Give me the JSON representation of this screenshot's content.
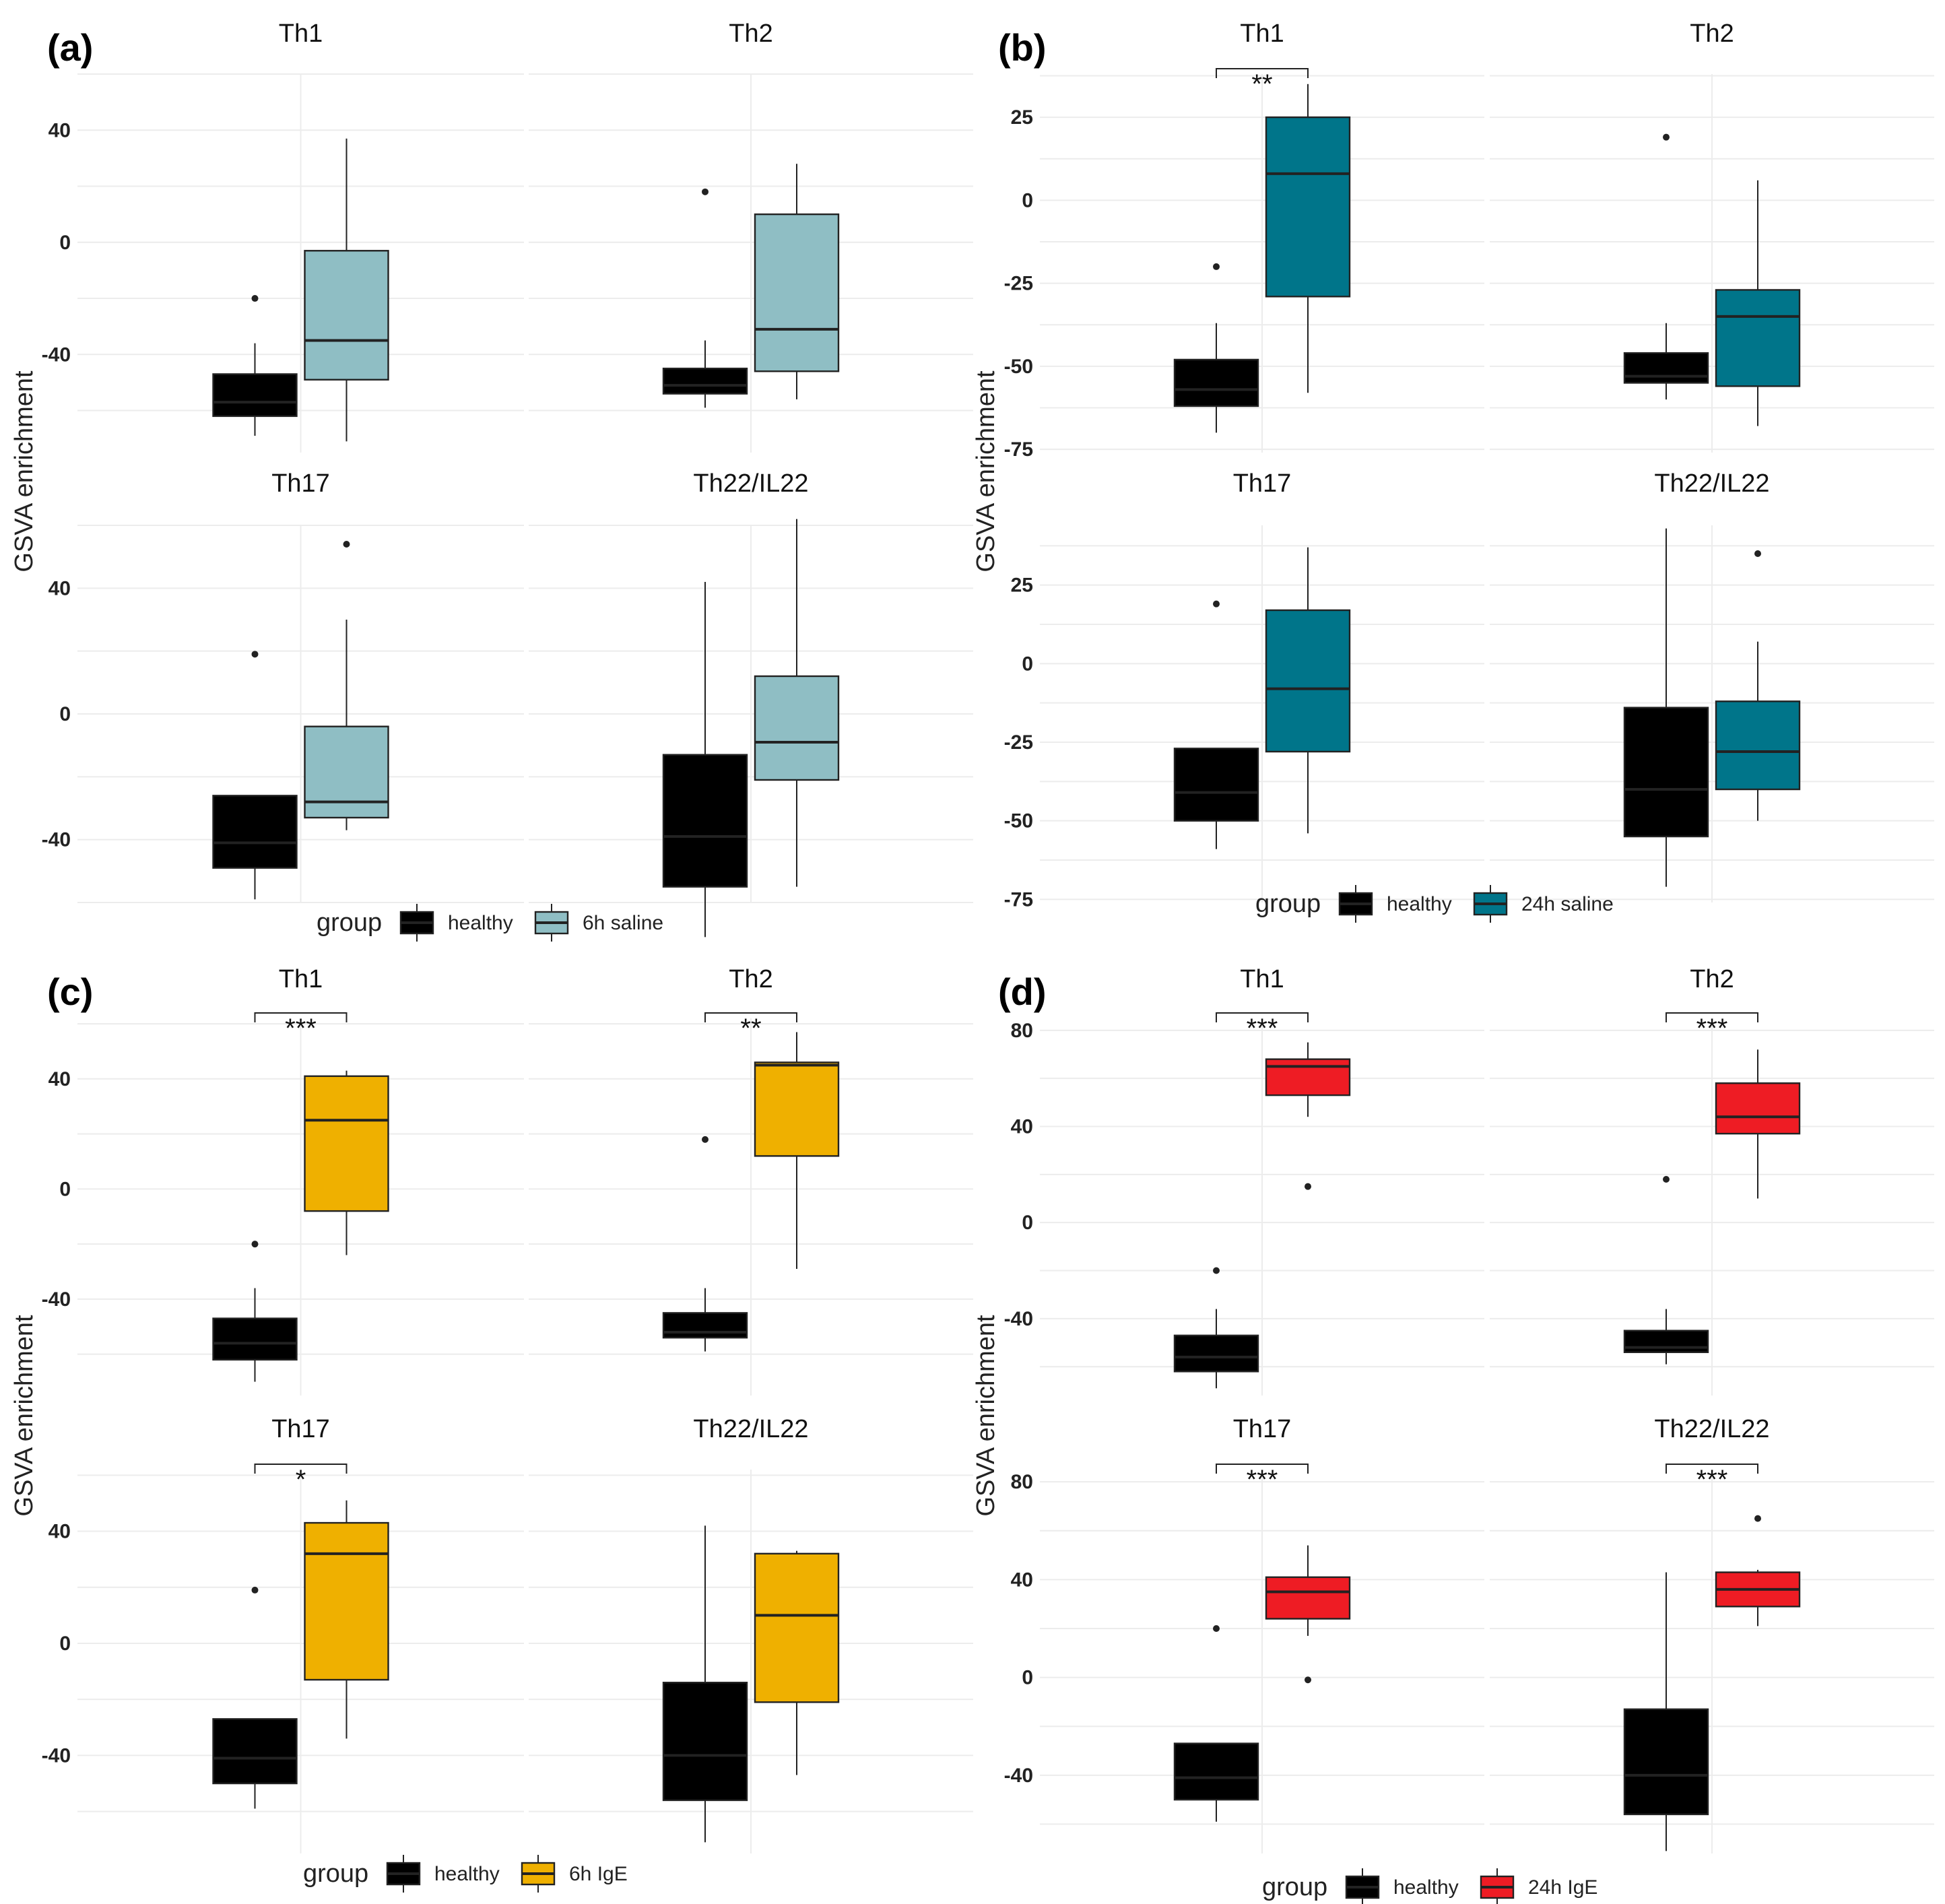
{
  "chart_data": [
    {
      "id": "a",
      "type": "boxplot",
      "panel_label": "(a)",
      "ylabel": "GSVA enrichment",
      "group_title": "group",
      "groups": [
        "healthy",
        "6h saline"
      ],
      "colors": [
        "#000000",
        "#8fbec4"
      ],
      "rows": [
        {
          "yticks": [
            40,
            0,
            -40
          ],
          "ylim": [
            -75,
            60
          ],
          "facets": [
            {
              "title": "Th1",
              "sig": "",
              "boxes": [
                {
                  "min": -69,
                  "q1": -62,
                  "median": -57,
                  "q3": -47,
                  "max": -36,
                  "outliers": [
                    -20
                  ]
                },
                {
                  "min": -71,
                  "q1": -49,
                  "median": -35,
                  "q3": -3,
                  "max": 37,
                  "outliers": []
                }
              ]
            },
            {
              "title": "Th2",
              "sig": "",
              "boxes": [
                {
                  "min": -59,
                  "q1": -54,
                  "median": -51,
                  "q3": -45,
                  "max": -35,
                  "outliers": [
                    18
                  ]
                },
                {
                  "min": -56,
                  "q1": -46,
                  "median": -31,
                  "q3": 10,
                  "max": 28,
                  "outliers": []
                }
              ]
            }
          ]
        },
        {
          "yticks": [
            40,
            0,
            -40
          ],
          "ylim": [
            -60,
            60
          ],
          "facets": [
            {
              "title": "Th17",
              "sig": "",
              "boxes": [
                {
                  "min": -59,
                  "q1": -49,
                  "median": -41,
                  "q3": -26,
                  "max": -26,
                  "outliers": [
                    19
                  ]
                },
                {
                  "min": -37,
                  "q1": -33,
                  "median": -28,
                  "q3": -4,
                  "max": 30,
                  "outliers": [
                    54
                  ]
                }
              ]
            },
            {
              "title": "Th22/IL22",
              "sig": "",
              "boxes": [
                {
                  "min": -71,
                  "q1": -55,
                  "median": -39,
                  "q3": -13,
                  "max": 42,
                  "outliers": []
                },
                {
                  "min": -55,
                  "q1": -21,
                  "median": -9,
                  "q3": 12,
                  "max": 62,
                  "outliers": []
                }
              ]
            }
          ]
        }
      ]
    },
    {
      "id": "b",
      "type": "boxplot",
      "panel_label": "(b)",
      "ylabel": "GSVA enrichment",
      "group_title": "group",
      "groups": [
        "healthy",
        "24h saline"
      ],
      "colors": [
        "#000000",
        "#00758a"
      ],
      "rows": [
        {
          "yticks": [
            25,
            0,
            -25,
            -50,
            -75
          ],
          "ylim": [
            -76,
            38
          ],
          "facets": [
            {
              "title": "Th1",
              "sig": "**",
              "boxes": [
                {
                  "min": -70,
                  "q1": -62,
                  "median": -57,
                  "q3": -48,
                  "max": -37,
                  "outliers": [
                    -20
                  ]
                },
                {
                  "min": -58,
                  "q1": -29,
                  "median": 8,
                  "q3": 25,
                  "max": 35,
                  "outliers": []
                }
              ]
            },
            {
              "title": "Th2",
              "sig": "",
              "boxes": [
                {
                  "min": -60,
                  "q1": -55,
                  "median": -53,
                  "q3": -46,
                  "max": -37,
                  "outliers": [
                    19
                  ]
                },
                {
                  "min": -68,
                  "q1": -56,
                  "median": -35,
                  "q3": -27,
                  "max": 6,
                  "outliers": []
                }
              ]
            }
          ]
        },
        {
          "yticks": [
            25,
            0,
            -25,
            -50,
            -75
          ],
          "ylim": [
            -76,
            44
          ],
          "facets": [
            {
              "title": "Th17",
              "sig": "",
              "boxes": [
                {
                  "min": -59,
                  "q1": -50,
                  "median": -41,
                  "q3": -27,
                  "max": -27,
                  "outliers": [
                    19
                  ]
                },
                {
                  "min": -54,
                  "q1": -28,
                  "median": -8,
                  "q3": 17,
                  "max": 37,
                  "outliers": []
                }
              ]
            },
            {
              "title": "Th22/IL22",
              "sig": "",
              "boxes": [
                {
                  "min": -71,
                  "q1": -55,
                  "median": -40,
                  "q3": -14,
                  "max": 43,
                  "outliers": []
                },
                {
                  "min": -50,
                  "q1": -40,
                  "median": -28,
                  "q3": -12,
                  "max": 7,
                  "outliers": [
                    35
                  ]
                }
              ]
            }
          ]
        }
      ]
    },
    {
      "id": "c",
      "type": "boxplot",
      "panel_label": "(c)",
      "ylabel": "GSVA enrichment",
      "group_title": "group",
      "groups": [
        "healthy",
        "6h IgE"
      ],
      "colors": [
        "#000000",
        "#efb000"
      ],
      "rows": [
        {
          "yticks": [
            40,
            0,
            -40
          ],
          "ylim": [
            -75,
            62
          ],
          "facets": [
            {
              "title": "Th1",
              "sig": "***",
              "boxes": [
                {
                  "min": -70,
                  "q1": -62,
                  "median": -56,
                  "q3": -47,
                  "max": -36,
                  "outliers": [
                    -20
                  ]
                },
                {
                  "min": -24,
                  "q1": -8,
                  "median": 25,
                  "q3": 41,
                  "max": 43,
                  "outliers": []
                }
              ]
            },
            {
              "title": "Th2",
              "sig": "**",
              "boxes": [
                {
                  "min": -59,
                  "q1": -54,
                  "median": -52,
                  "q3": -45,
                  "max": -36,
                  "outliers": [
                    18
                  ]
                },
                {
                  "min": -29,
                  "q1": 12,
                  "median": 45,
                  "q3": 46,
                  "max": 57,
                  "outliers": []
                }
              ]
            }
          ]
        },
        {
          "yticks": [
            40,
            0,
            -40
          ],
          "ylim": [
            -75,
            62
          ],
          "facets": [
            {
              "title": "Th17",
              "sig": "*",
              "boxes": [
                {
                  "min": -59,
                  "q1": -50,
                  "median": -41,
                  "q3": -27,
                  "max": -27,
                  "outliers": [
                    19
                  ]
                },
                {
                  "min": -34,
                  "q1": -13,
                  "median": 32,
                  "q3": 43,
                  "max": 51,
                  "outliers": []
                }
              ]
            },
            {
              "title": "Th22/IL22",
              "sig": "",
              "boxes": [
                {
                  "min": -71,
                  "q1": -56,
                  "median": -40,
                  "q3": -14,
                  "max": 42,
                  "outliers": []
                },
                {
                  "min": -47,
                  "q1": -21,
                  "median": 10,
                  "q3": 32,
                  "max": 33,
                  "outliers": []
                }
              ]
            }
          ]
        }
      ]
    },
    {
      "id": "d",
      "type": "boxplot",
      "panel_label": "(d)",
      "ylabel": "GSVA enrichment",
      "group_title": "group",
      "groups": [
        "healthy",
        "24h IgE"
      ],
      "colors": [
        "#000000",
        "#ee1c24"
      ],
      "rows": [
        {
          "yticks": [
            80,
            40,
            0,
            -40
          ],
          "ylim": [
            -72,
            85
          ],
          "facets": [
            {
              "title": "Th1",
              "sig": "***",
              "boxes": [
                {
                  "min": -69,
                  "q1": -62,
                  "median": -56,
                  "q3": -47,
                  "max": -36,
                  "outliers": [
                    -20
                  ]
                },
                {
                  "min": 44,
                  "q1": 53,
                  "median": 65,
                  "q3": 68,
                  "max": 75,
                  "outliers": [
                    15
                  ]
                }
              ]
            },
            {
              "title": "Th2",
              "sig": "***",
              "boxes": [
                {
                  "min": -59,
                  "q1": -54,
                  "median": -52,
                  "q3": -45,
                  "max": -36,
                  "outliers": [
                    18
                  ]
                },
                {
                  "min": 10,
                  "q1": 37,
                  "median": 44,
                  "q3": 58,
                  "max": 72,
                  "outliers": []
                }
              ]
            }
          ]
        },
        {
          "yticks": [
            80,
            40,
            0,
            -40
          ],
          "ylim": [
            -72,
            85
          ],
          "facets": [
            {
              "title": "Th17",
              "sig": "***",
              "boxes": [
                {
                  "min": -59,
                  "q1": -50,
                  "median": -41,
                  "q3": -27,
                  "max": -27,
                  "outliers": [
                    20
                  ]
                },
                {
                  "min": 17,
                  "q1": 24,
                  "median": 35,
                  "q3": 41,
                  "max": 54,
                  "outliers": [
                    -1
                  ]
                }
              ]
            },
            {
              "title": "Th22/IL22",
              "sig": "***",
              "boxes": [
                {
                  "min": -71,
                  "q1": -56,
                  "median": -40,
                  "q3": -13,
                  "max": 43,
                  "outliers": []
                },
                {
                  "min": 21,
                  "q1": 29,
                  "median": 36,
                  "q3": 43,
                  "max": 44,
                  "outliers": [
                    65
                  ]
                }
              ]
            }
          ]
        }
      ]
    }
  ]
}
